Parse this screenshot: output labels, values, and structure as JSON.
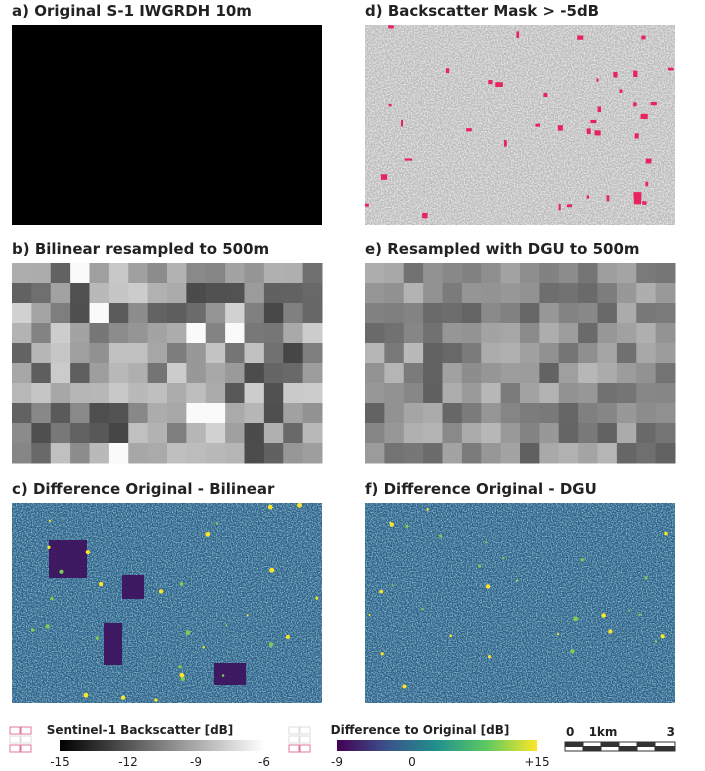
{
  "panels": [
    {
      "title": "a) Original S-1 IWGRDH 10m"
    },
    {
      "title": "d) Backscatter Mask > -5dB"
    },
    {
      "title": "b) Bilinear resampled to 500m"
    },
    {
      "title": "e) Resampled with DGU to 500m"
    },
    {
      "title": "c) Difference Original - Bilinear"
    },
    {
      "title": "f) Difference Original - DGU"
    }
  ],
  "colorbars": [
    {
      "label": "Sentinel-1 Backscatter [dB]",
      "ticks": [
        "-15",
        "-12",
        "-9",
        "-6"
      ]
    },
    {
      "label": "Difference to Original [dB]",
      "ticks": [
        "-9",
        "0",
        "+15"
      ]
    }
  ],
  "scale_bar": {
    "labels": [
      "0",
      "1km",
      "3"
    ]
  }
}
